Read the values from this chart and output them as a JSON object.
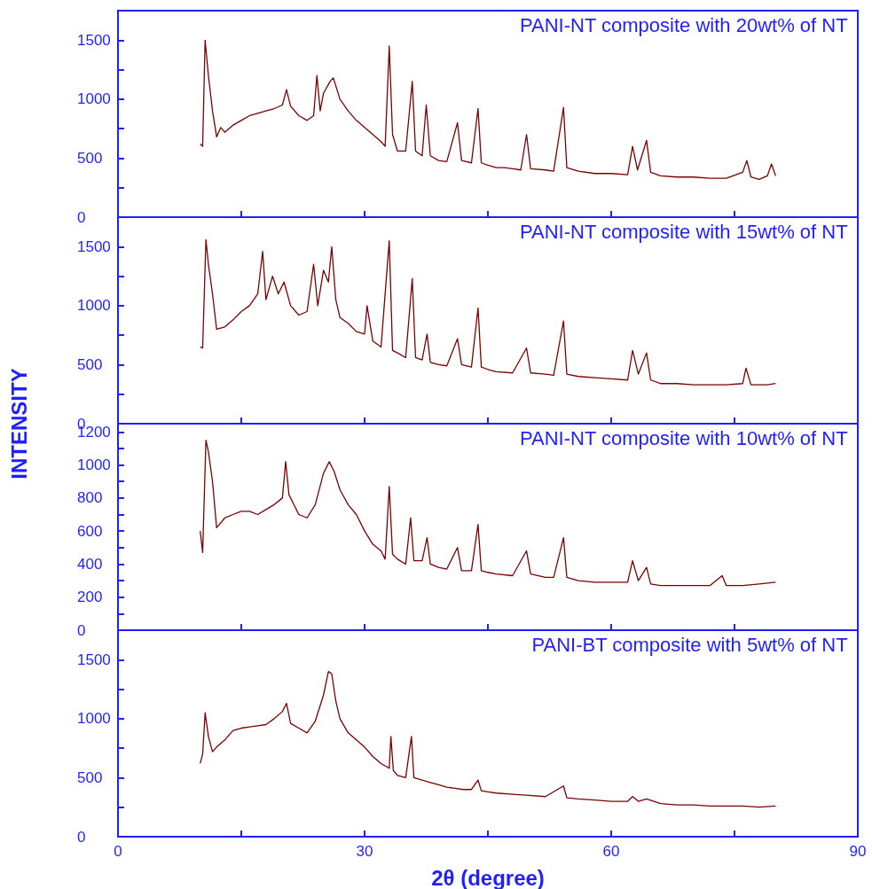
{
  "chart_data": [
    {
      "type": "line",
      "title": "PANI-NT composite with 20wt% of NT",
      "color": "#7b0000",
      "xlim": [
        0,
        90
      ],
      "xticks": [
        0,
        {
          "value": 15,
          "label": null
        },
        30,
        {
          "value": 45,
          "label": null
        },
        60,
        {
          "value": 75,
          "label": null
        },
        90
      ],
      "ylim": [
        0,
        1750
      ],
      "yticks": [
        0,
        {
          "value": 250,
          "label": null
        },
        500,
        {
          "value": 750,
          "label": null
        },
        1000,
        {
          "value": 1250,
          "label": null
        },
        1500
      ],
      "tick_labels": "y",
      "marker": "none",
      "x": [
        10,
        10.3,
        10.6,
        11,
        11.5,
        12,
        12.5,
        13,
        14,
        15,
        16,
        17,
        18,
        19,
        20,
        20.5,
        21,
        22,
        23,
        23.8,
        24.2,
        24.6,
        25,
        25.8,
        26.2,
        27,
        28,
        29,
        30,
        31,
        32,
        32.5,
        33,
        33.4,
        34,
        35,
        35.8,
        36.2,
        37,
        37.5,
        38,
        39,
        40,
        41.3,
        41.8,
        43,
        43.8,
        44.2,
        45,
        46,
        47,
        48,
        49,
        49.7,
        50.2,
        52,
        53,
        54.2,
        54.6,
        56,
        58,
        60,
        62,
        62.6,
        63.2,
        64.3,
        64.8,
        66,
        68,
        70,
        72,
        74,
        76,
        76.5,
        77,
        78,
        79,
        79.5,
        80
      ],
      "values": [
        620,
        600,
        1500,
        1200,
        900,
        680,
        760,
        720,
        780,
        820,
        860,
        880,
        900,
        920,
        950,
        1080,
        940,
        860,
        820,
        860,
        1200,
        900,
        1050,
        1150,
        1180,
        1000,
        900,
        820,
        760,
        700,
        640,
        600,
        1450,
        700,
        560,
        560,
        1150,
        560,
        520,
        950,
        520,
        480,
        470,
        800,
        480,
        460,
        920,
        460,
        440,
        420,
        420,
        410,
        400,
        700,
        410,
        400,
        390,
        930,
        420,
        390,
        370,
        370,
        360,
        600,
        400,
        650,
        380,
        350,
        340,
        340,
        330,
        330,
        380,
        480,
        340,
        320,
        350,
        450,
        350
      ]
    },
    {
      "type": "line",
      "title": "PANI-NT composite with 15wt% of NT",
      "ylabel": "INTENSITY",
      "color": "#7b0000",
      "xlim": [
        0,
        90
      ],
      "xticks": [
        0,
        {
          "value": 15,
          "label": null
        },
        30,
        {
          "value": 45,
          "label": null
        },
        60,
        {
          "value": 75,
          "label": null
        },
        90
      ],
      "ylim": [
        0,
        1750
      ],
      "yticks": [
        0,
        {
          "value": 250,
          "label": null
        },
        500,
        {
          "value": 750,
          "label": null
        },
        1000,
        {
          "value": 1250,
          "label": null
        },
        1500
      ],
      "tick_labels": "y",
      "marker": "none",
      "x": [
        10,
        10.3,
        10.7,
        11,
        11.5,
        12,
        13,
        14,
        15,
        16,
        17,
        17.6,
        18,
        18.8,
        19.5,
        20.2,
        21,
        22,
        23,
        23.8,
        24.3,
        25,
        25.6,
        26,
        26.5,
        27,
        28,
        29,
        30,
        30.3,
        31,
        32,
        33,
        33.4,
        34,
        35,
        35.8,
        36.2,
        37,
        37.6,
        38,
        39,
        40,
        41.3,
        41.8,
        43,
        43.8,
        44.2,
        45,
        46,
        48,
        49.7,
        50.2,
        52,
        53,
        54.2,
        54.6,
        56,
        58,
        60,
        62,
        62.6,
        63.3,
        64.3,
        64.8,
        66,
        68,
        70,
        72,
        74,
        76,
        76.4,
        77,
        78,
        79,
        80
      ],
      "values": [
        650,
        640,
        1560,
        1350,
        1100,
        800,
        820,
        880,
        950,
        1000,
        1100,
        1460,
        1050,
        1250,
        1100,
        1200,
        1000,
        920,
        950,
        1350,
        1000,
        1300,
        1200,
        1500,
        1050,
        900,
        850,
        780,
        760,
        1000,
        700,
        650,
        1550,
        620,
        600,
        560,
        1230,
        560,
        540,
        760,
        520,
        500,
        490,
        720,
        500,
        480,
        980,
        480,
        460,
        440,
        430,
        640,
        430,
        420,
        410,
        870,
        420,
        400,
        390,
        380,
        370,
        620,
        420,
        600,
        370,
        340,
        340,
        330,
        330,
        330,
        340,
        470,
        330,
        330,
        330,
        340
      ]
    },
    {
      "type": "line",
      "title": "PANI-NT composite with 10wt% of NT",
      "color": "#7b0000",
      "xlim": [
        0,
        90
      ],
      "xticks": [
        0,
        {
          "value": 15,
          "label": null
        },
        30,
        {
          "value": 45,
          "label": null
        },
        60,
        {
          "value": 75,
          "label": null
        },
        90
      ],
      "ylim": [
        0,
        1250
      ],
      "yticks": [
        0,
        {
          "value": 100,
          "label": null
        },
        200,
        {
          "value": 300,
          "label": null
        },
        400,
        {
          "value": 500,
          "label": null
        },
        600,
        {
          "value": 700,
          "label": null
        },
        800,
        {
          "value": 900,
          "label": null
        },
        1000,
        {
          "value": 1100,
          "label": null
        },
        1200
      ],
      "tick_labels": "y",
      "marker": "none",
      "x": [
        10,
        10.3,
        10.7,
        11,
        11.5,
        12,
        13,
        14,
        15,
        16,
        17,
        18,
        19,
        20,
        20.4,
        20.8,
        22,
        23,
        24,
        25,
        25.7,
        26.3,
        27,
        28,
        29,
        30,
        31,
        32,
        32.5,
        33,
        33.4,
        34,
        35,
        35.6,
        36,
        37,
        37.6,
        38,
        39,
        40,
        41.3,
        41.8,
        43,
        43.8,
        44.2,
        45,
        46,
        48,
        49.7,
        50.2,
        52,
        53,
        54.2,
        54.6,
        56,
        58,
        60,
        62,
        62.6,
        63.3,
        64.3,
        64.8,
        66,
        68,
        70,
        72,
        73.5,
        74,
        76,
        78,
        80
      ],
      "values": [
        600,
        470,
        1150,
        1080,
        900,
        620,
        680,
        700,
        720,
        720,
        700,
        730,
        760,
        800,
        1020,
        820,
        700,
        680,
        760,
        950,
        1020,
        960,
        850,
        760,
        700,
        600,
        520,
        480,
        430,
        870,
        460,
        430,
        400,
        680,
        420,
        420,
        560,
        400,
        380,
        370,
        500,
        360,
        360,
        640,
        360,
        350,
        340,
        330,
        480,
        340,
        320,
        320,
        560,
        320,
        300,
        290,
        290,
        290,
        420,
        300,
        380,
        280,
        270,
        270,
        270,
        270,
        330,
        270,
        270,
        280,
        290
      ]
    },
    {
      "type": "line",
      "title": "PANI-BT composite with 5wt% of NT",
      "xlabel": "2θ (degree)",
      "color": "#7b0000",
      "xlim": [
        0,
        90
      ],
      "xticks": [
        0,
        {
          "value": 15,
          "label": null
        },
        30,
        {
          "value": 45,
          "label": null
        },
        60,
        {
          "value": 75,
          "label": null
        },
        90
      ],
      "ylim": [
        0,
        1750
      ],
      "yticks": [
        0,
        {
          "value": 250,
          "label": null
        },
        500,
        {
          "value": 750,
          "label": null
        },
        1000,
        {
          "value": 1250,
          "label": null
        },
        1500
      ],
      "marker": "none",
      "x": [
        10,
        10.3,
        10.6,
        11,
        11.5,
        12,
        13,
        14,
        15,
        16,
        17,
        18,
        19,
        20,
        20.5,
        21,
        22,
        23,
        24,
        25,
        25.6,
        26,
        26.5,
        27,
        28,
        29,
        30,
        31,
        32,
        33,
        33.2,
        33.5,
        34,
        35,
        35.7,
        36,
        37,
        38,
        39,
        40,
        41,
        42,
        43,
        43.8,
        44.2,
        45,
        46,
        48,
        50,
        52,
        54.2,
        54.6,
        56,
        58,
        60,
        62,
        62.6,
        63.3,
        64.3,
        66,
        68,
        70,
        72,
        74,
        76,
        78,
        80
      ],
      "values": [
        620,
        700,
        1050,
        850,
        720,
        760,
        820,
        900,
        920,
        930,
        940,
        950,
        1000,
        1060,
        1130,
        960,
        920,
        880,
        980,
        1200,
        1400,
        1380,
        1150,
        1000,
        880,
        820,
        760,
        680,
        620,
        580,
        850,
        560,
        520,
        500,
        850,
        500,
        480,
        460,
        440,
        420,
        410,
        400,
        400,
        480,
        390,
        380,
        370,
        360,
        350,
        340,
        430,
        330,
        320,
        310,
        300,
        300,
        340,
        300,
        320,
        280,
        270,
        270,
        260,
        260,
        260,
        250,
        260
      ]
    }
  ]
}
